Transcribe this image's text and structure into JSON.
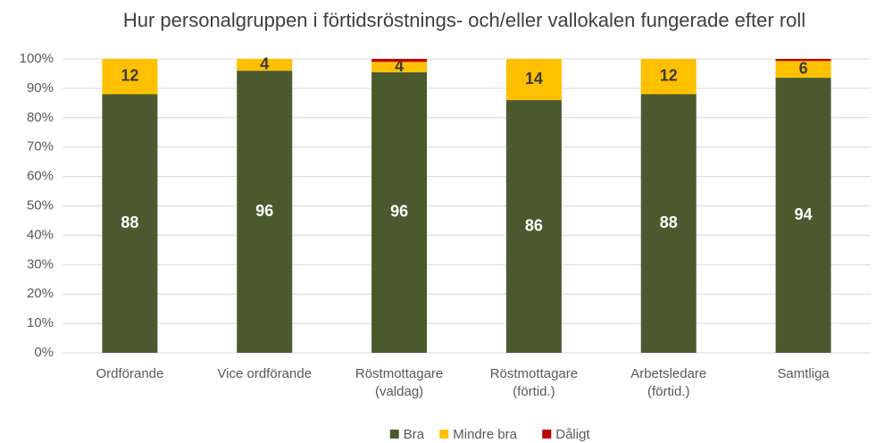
{
  "chart_data": {
    "type": "stacked_bar",
    "title": "Hur personalgruppen i förtidsröstnings- och/eller vallokalen fungerade efter roll",
    "categories": [
      [
        "Ordförande"
      ],
      [
        "Vice ordförande"
      ],
      [
        "Röstmottagare",
        "(valdag)"
      ],
      [
        "Röstmottagare",
        "(förtid.)"
      ],
      [
        "Arbetsledare",
        "(förtid.)"
      ],
      [
        "Samtliga"
      ]
    ],
    "series": [
      {
        "name": "Bra",
        "color": "#4a5a2e",
        "label_color": "#ffffff",
        "values": [
          88,
          96,
          95.5,
          86,
          88,
          93.6
        ],
        "value_labels": [
          "88",
          "96",
          "96",
          "86",
          "88",
          "94"
        ]
      },
      {
        "name": "Mindre bra",
        "color": "#ffc000",
        "label_color": "#3a3a3a",
        "values": [
          12,
          4,
          3.5,
          14,
          12,
          5.7
        ],
        "value_labels": [
          "12",
          "4",
          "4",
          "14",
          "12",
          "6"
        ]
      },
      {
        "name": "Dåligt",
        "color": "#c00000",
        "values": [
          0,
          0,
          1,
          0,
          0,
          0.7
        ]
      }
    ],
    "ylim": [
      0,
      100
    ],
    "yticks": [
      {
        "value": 0,
        "label": "0%"
      },
      {
        "value": 10,
        "label": "10%"
      },
      {
        "value": 20,
        "label": "20%"
      },
      {
        "value": 30,
        "label": "30%"
      },
      {
        "value": 40,
        "label": "40%"
      },
      {
        "value": 50,
        "label": "50%"
      },
      {
        "value": 60,
        "label": "60%"
      },
      {
        "value": 70,
        "label": "70%"
      },
      {
        "value": 80,
        "label": "80%"
      },
      {
        "value": 90,
        "label": "90%"
      },
      {
        "value": 100,
        "label": "100%"
      }
    ],
    "grid": true,
    "legend": "bottom"
  }
}
